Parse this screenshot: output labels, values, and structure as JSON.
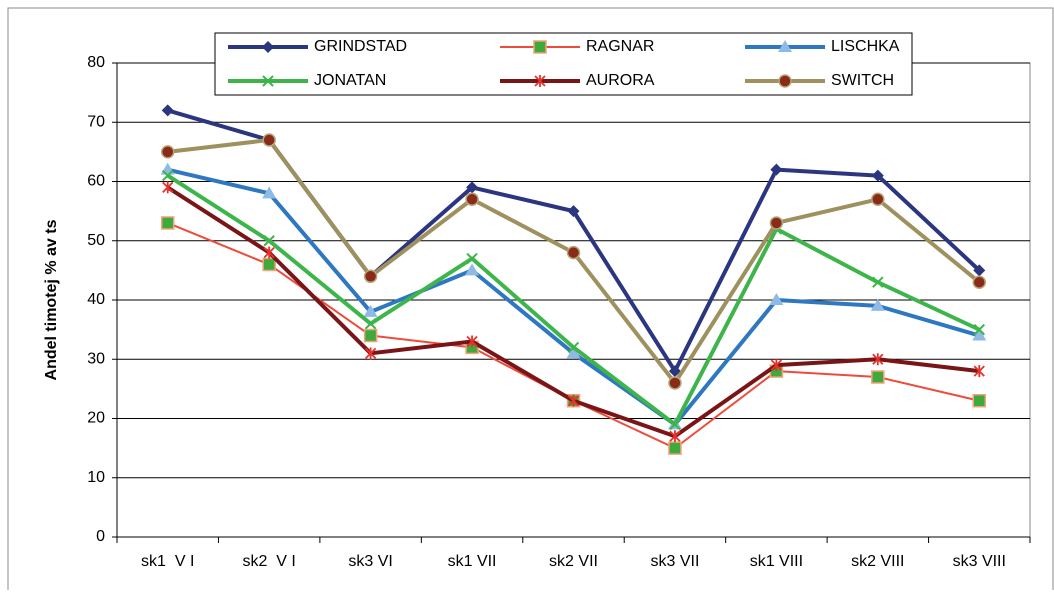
{
  "chart_data": {
    "type": "line",
    "y_label": "Andel timotej % av ts",
    "categories": [
      "sk1  V I",
      "sk2  V I",
      "sk3 VI",
      "sk1 VII",
      "sk2 VII",
      "sk3 VII",
      "sk1 VIII",
      "sk2 VIII",
      "sk3 VIII"
    ],
    "ylim": [
      0,
      80
    ],
    "yticks": [
      0,
      10,
      20,
      30,
      40,
      50,
      60,
      70,
      80
    ],
    "grid": true,
    "series": [
      {
        "name": "GRINDSTAD",
        "color": "#2B3580",
        "marker": "diamond",
        "marker_color": "#2B3580",
        "values": [
          72,
          67,
          44,
          59,
          55,
          28,
          62,
          61,
          45
        ]
      },
      {
        "name": "RAGNAR",
        "color": "#EE4B3A",
        "marker": "square",
        "marker_color": "#3DAA3D",
        "values": [
          53,
          46,
          34,
          32,
          23,
          15,
          28,
          27,
          23
        ]
      },
      {
        "name": "LISCHKA",
        "color": "#2E78C2",
        "marker": "triangle",
        "marker_color": "#8EBBE6",
        "values": [
          62,
          58,
          38,
          45,
          31,
          19,
          40,
          39,
          34
        ]
      },
      {
        "name": "JONATAN",
        "color": "#3DB54A",
        "marker": "x",
        "marker_color": "#3DB54A",
        "values": [
          61,
          50,
          36,
          47,
          32,
          19,
          52,
          43,
          35
        ]
      },
      {
        "name": "AURORA",
        "color": "#7A1517",
        "marker": "star",
        "marker_color": "#E8312B",
        "values": [
          59,
          48,
          31,
          33,
          23,
          17,
          29,
          30,
          28
        ]
      },
      {
        "name": "SWITCH",
        "color": "#9E915E",
        "marker": "circle",
        "marker_color": "#8A2A18",
        "values": [
          65,
          67,
          44,
          57,
          48,
          26,
          53,
          57,
          43
        ]
      }
    ]
  }
}
